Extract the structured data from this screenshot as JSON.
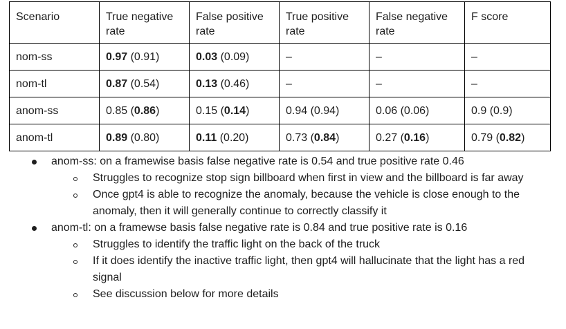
{
  "table": {
    "headers": [
      "Scenario",
      "True negative rate",
      "False positive rate",
      "True positive rate",
      "False negative rate",
      "F score"
    ],
    "rows": [
      [
        {
          "s": [
            {
              "t": "nom-ss"
            }
          ]
        },
        {
          "s": [
            {
              "t": "0.97",
              "b": true
            },
            {
              "t": " (0.91)"
            }
          ]
        },
        {
          "s": [
            {
              "t": "0.03",
              "b": true
            },
            {
              "t": " (0.09)"
            }
          ]
        },
        {
          "s": [
            {
              "t": "–"
            }
          ]
        },
        {
          "s": [
            {
              "t": "–"
            }
          ]
        },
        {
          "s": [
            {
              "t": "–"
            }
          ]
        }
      ],
      [
        {
          "s": [
            {
              "t": "nom-tl"
            }
          ]
        },
        {
          "s": [
            {
              "t": "0.87",
              "b": true
            },
            {
              "t": " (0.54)"
            }
          ]
        },
        {
          "s": [
            {
              "t": "0.13",
              "b": true
            },
            {
              "t": " (0.46)"
            }
          ]
        },
        {
          "s": [
            {
              "t": "–"
            }
          ]
        },
        {
          "s": [
            {
              "t": "–"
            }
          ]
        },
        {
          "s": [
            {
              "t": "–"
            }
          ]
        }
      ],
      [
        {
          "s": [
            {
              "t": "anom-ss"
            }
          ]
        },
        {
          "s": [
            {
              "t": "0.85 ("
            },
            {
              "t": "0.86",
              "b": true
            },
            {
              "t": ")"
            }
          ]
        },
        {
          "s": [
            {
              "t": "0.15 ("
            },
            {
              "t": "0.14",
              "b": true
            },
            {
              "t": ")"
            }
          ]
        },
        {
          "s": [
            {
              "t": "0.94 (0.94)"
            }
          ]
        },
        {
          "s": [
            {
              "t": "0.06 (0.06)"
            }
          ]
        },
        {
          "s": [
            {
              "t": "0.9 (0.9)"
            }
          ]
        }
      ],
      [
        {
          "s": [
            {
              "t": "anom-tl"
            }
          ]
        },
        {
          "s": [
            {
              "t": "0.89",
              "b": true
            },
            {
              "t": " (0.80)"
            }
          ]
        },
        {
          "s": [
            {
              "t": "0.11",
              "b": true
            },
            {
              "t": " (0.20)"
            }
          ]
        },
        {
          "s": [
            {
              "t": "0.73 ("
            },
            {
              "t": "0.84",
              "b": true
            },
            {
              "t": ")"
            }
          ]
        },
        {
          "s": [
            {
              "t": "0.27 ("
            },
            {
              "t": "0.16",
              "b": true
            },
            {
              "t": ")"
            }
          ]
        },
        {
          "s": [
            {
              "t": "0.79 ("
            },
            {
              "t": "0.82",
              "b": true
            },
            {
              "t": ")"
            }
          ]
        }
      ]
    ]
  },
  "notes": [
    {
      "text": "anom-ss: on a framewise basis false negative rate is 0.54 and true positive rate 0.46",
      "sub": [
        "Struggles to recognize stop sign billboard when first in view and the billboard is far away",
        "Once gpt4 is able to recognize the anomaly, because the vehicle is close enough to the anomaly, then it will generally continue to correctly classify it"
      ]
    },
    {
      "text": "anom-tl: on a framewse basis false negative rate is 0.84 and true positive rate is 0.16",
      "sub": [
        "Struggles to identify the traffic light on the back of the truck",
        "If it does identify the inactive traffic light, then gpt4 will hallucinate that the light has a red signal",
        "See discussion below for more details"
      ]
    }
  ]
}
